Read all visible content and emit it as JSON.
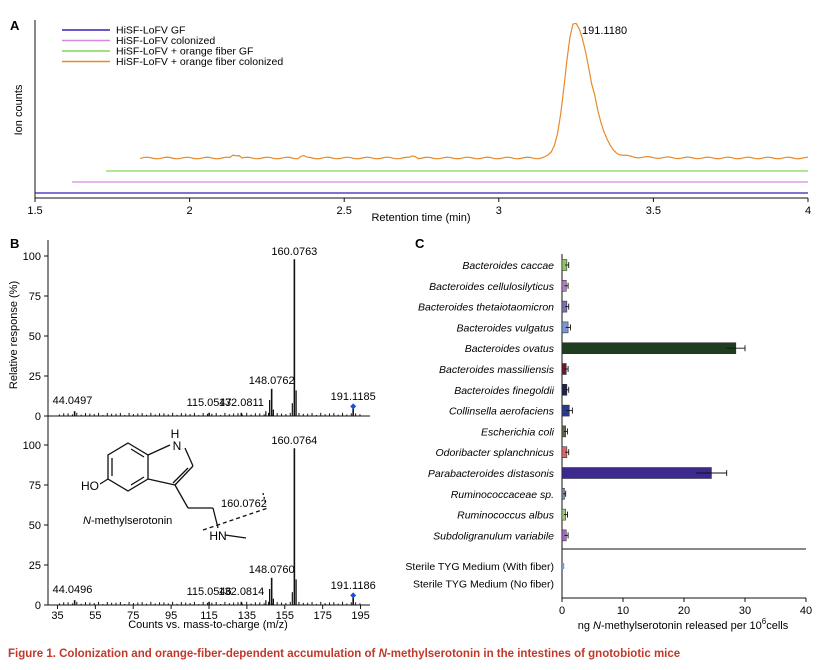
{
  "panelA": {
    "letter": "A",
    "xlabel": "Retention time (min)",
    "ylabel": "Ion counts",
    "xlim": [
      1.5,
      4
    ],
    "x_ticks": [
      "1.5",
      "2",
      "2.5",
      "3",
      "3.5",
      "4"
    ],
    "peak_label": "191.1180",
    "legend_position": "top-left",
    "series": [
      {
        "name": "HiSF-LoFV GF",
        "color": "#3a1fb0"
      },
      {
        "name": "HiSF-LoFV colonized",
        "color": "#d58ae0"
      },
      {
        "name": "HiSF-LoFV + orange fiber GF",
        "color": "#7ed957"
      },
      {
        "name": "HiSF-LoFV + orange fiber colonized",
        "color": "#e8892a"
      }
    ]
  },
  "panelB": {
    "letter": "B",
    "ylabel": "Relative response (%)",
    "xlabel": "Counts vs. mass-to-charge (m/z)",
    "x_ticks": [
      "35",
      "55",
      "75",
      "95",
      "115",
      "135",
      "155",
      "175",
      "195"
    ],
    "y_ticks": [
      "0",
      "25",
      "50",
      "75",
      "100"
    ],
    "top": {
      "peaks": [
        {
          "mz": 44.0497,
          "label": "44.0497",
          "rel": 3
        },
        {
          "mz": 115.0547,
          "label": "115.0547",
          "rel": 2
        },
        {
          "mz": 132.0811,
          "label": "132.0811",
          "rel": 2
        },
        {
          "mz": 148.0762,
          "label": "148.0762",
          "rel": 17
        },
        {
          "mz": 160.0763,
          "label": "160.0763",
          "rel": 98
        },
        {
          "mz": 191.1185,
          "label": "191.1185",
          "rel": 6
        }
      ]
    },
    "bottom": {
      "peaks": [
        {
          "mz": 44.0496,
          "label": "44.0496",
          "rel": 3
        },
        {
          "mz": 115.0546,
          "label": "115.0546",
          "rel": 2
        },
        {
          "mz": 132.0814,
          "label": "132.0814",
          "rel": 2
        },
        {
          "mz": 148.076,
          "label": "148.0760",
          "rel": 17
        },
        {
          "mz": 160.0764,
          "label": "160.0764",
          "rel": 98
        },
        {
          "mz": 191.1186,
          "label": "191.1186",
          "rel": 6
        }
      ]
    },
    "structure": {
      "name_italic": "N",
      "name_rest": "-methylserotonin",
      "fragment_label": "160.0762",
      "atom_nh": "H",
      "atom_n": "N",
      "atom_ho": "HO",
      "atom_hn": "HN"
    }
  },
  "chart_data": [
    {
      "type": "line",
      "title": "",
      "xlabel": "Retention time (min)",
      "ylabel": "Ion counts",
      "xlim": [
        1.5,
        4
      ],
      "series": [
        {
          "name": "HiSF-LoFV GF",
          "baseline": "flat"
        },
        {
          "name": "HiSF-LoFV colonized",
          "baseline": "flat"
        },
        {
          "name": "HiSF-LoFV + orange fiber GF",
          "baseline": "flat"
        },
        {
          "name": "HiSF-LoFV + orange fiber colonized",
          "peak_x": 3.24,
          "peak_label": "191.1180"
        }
      ]
    },
    {
      "type": "bar",
      "orientation": "horizontal",
      "xlabel_prefix": "ng ",
      "xlabel_italic": "N",
      "xlabel_mid": "-methylserotonin released per 10",
      "xlabel_sup": "6",
      "xlabel_suffix": "cells",
      "xlim": [
        0,
        40
      ],
      "x_ticks": [
        "0",
        "10",
        "20",
        "30",
        "40"
      ],
      "grid": false,
      "categories": [
        "Bacteroides caccae",
        "Bacteroides cellulosilyticus",
        "Bacteroides thetaiotaomicron",
        "Bacteroides vulgatus",
        "Bacteroides ovatus",
        "Bacteroides massiliensis",
        "Bacteroides finegoldii",
        "Collinsella aerofaciens",
        "Escherichia coli",
        "Odoribacter splanchnicus",
        "Parabacteroides distasonis",
        "Ruminococcaceae sp.",
        "Ruminococcus albus",
        "Subdoligranulum variabile"
      ],
      "values": [
        0.8,
        0.7,
        0.8,
        1.0,
        28.5,
        0.7,
        0.8,
        1.2,
        0.6,
        0.8,
        24.5,
        0.4,
        0.6,
        0.7
      ],
      "errors": [
        0.3,
        0.3,
        0.3,
        0.4,
        1.5,
        0.3,
        0.3,
        0.5,
        0.3,
        0.3,
        2.5,
        0.2,
        0.3,
        0.3
      ],
      "colors": [
        "#8fc06a",
        "#b07cc6",
        "#7f6fb0",
        "#7c95cf",
        "#1f3d1f",
        "#6a1b2a",
        "#1c2452",
        "#2d3a8c",
        "#5b6b4a",
        "#d46a6a",
        "#3d2a8c",
        "#7b8ba8",
        "#9ccc7a",
        "#a06bc0"
      ],
      "control_categories": [
        "Sterile TYG Medium (With fiber)",
        "Sterile TYG Medium (No fiber)"
      ],
      "control_values": [
        0.2,
        0
      ],
      "control_colors": [
        "#7c95cf",
        "#7c95cf"
      ],
      "panel_letter": "C"
    }
  ],
  "caption": {
    "prefix": "Figure 1. Colonization and orange-fiber-dependent accumulation of ",
    "italic": "N",
    "suffix": "-methylserotonin in the intestines of gnotobiotic mice"
  }
}
